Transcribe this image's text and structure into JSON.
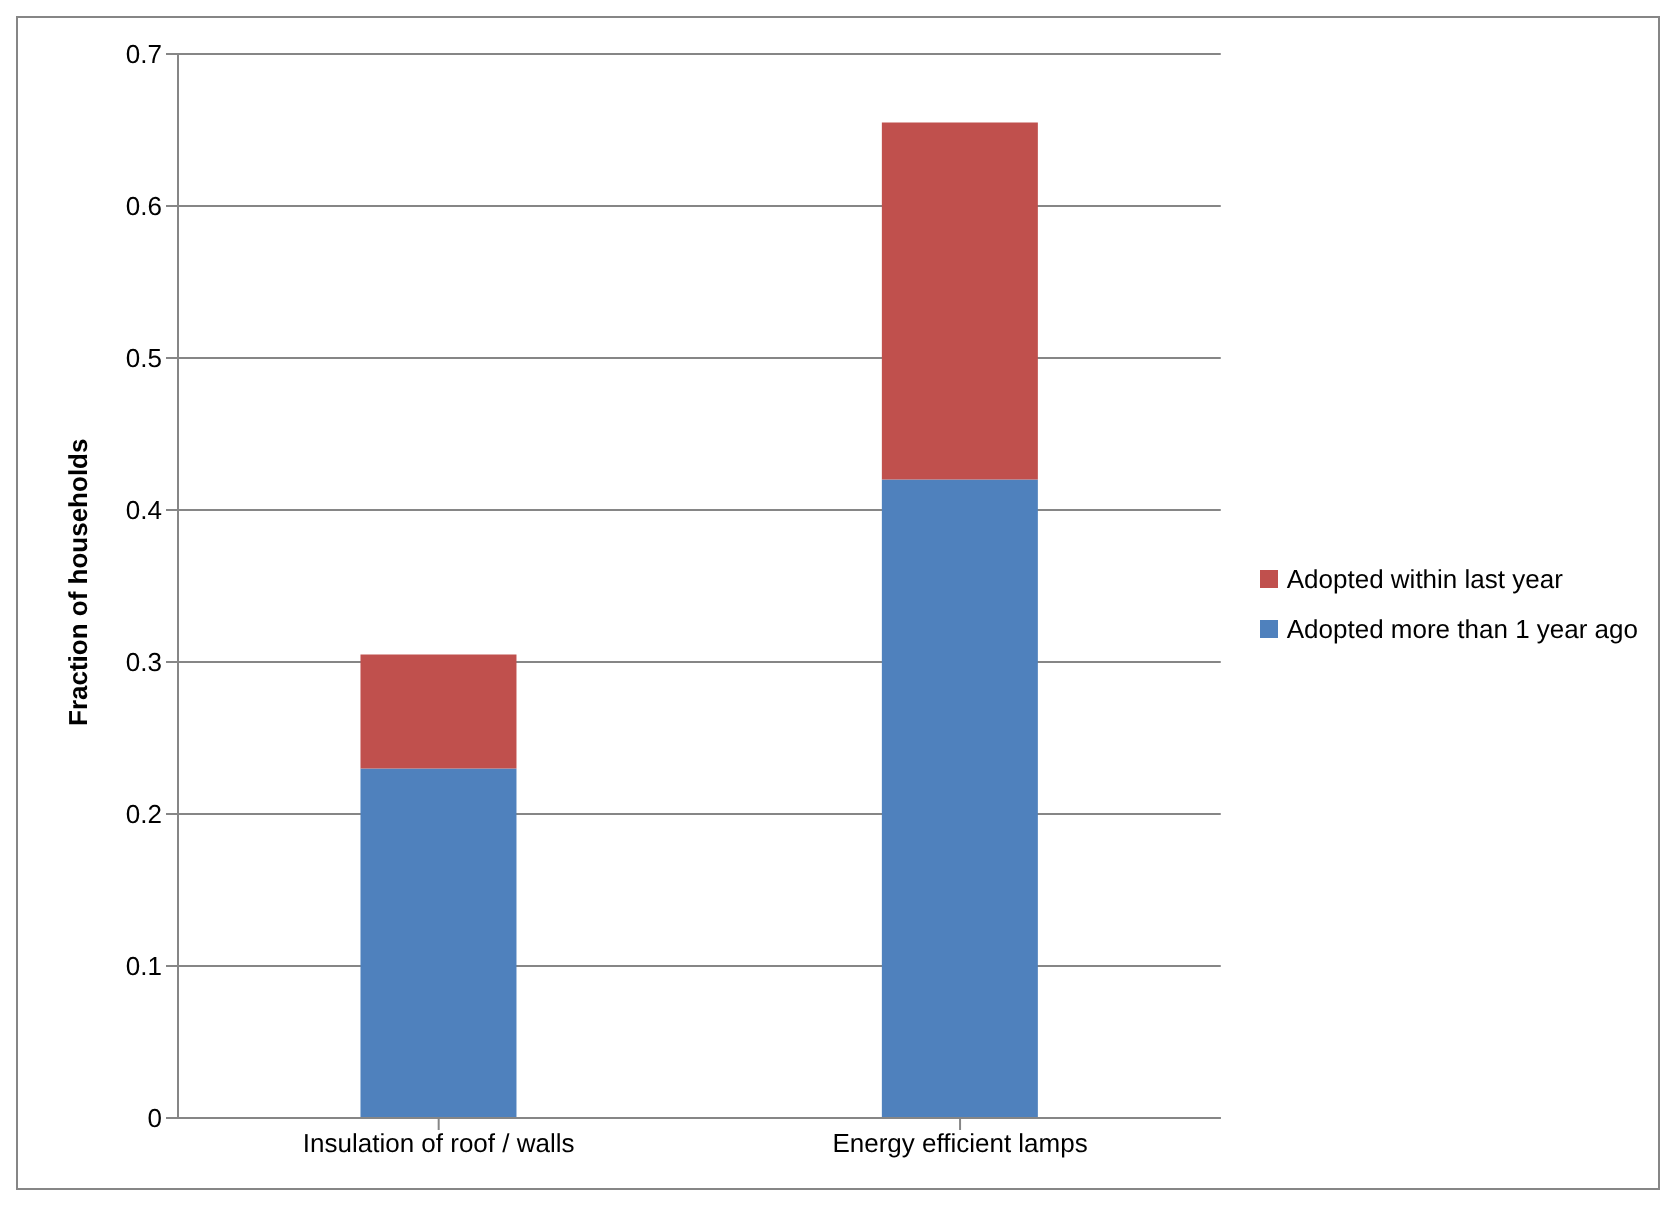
{
  "chart_data": {
    "type": "bar",
    "stacked": true,
    "ylabel": "Fraction of households",
    "categories": [
      "Insulation of roof / walls",
      "Energy efficient lamps"
    ],
    "series": [
      {
        "name": "Adopted more than 1 year ago",
        "color": "#4f81bd",
        "values": [
          0.23,
          0.42
        ]
      },
      {
        "name": "Adopted within last year",
        "color": "#c0504d",
        "values": [
          0.075,
          0.235
        ]
      }
    ],
    "ylim": [
      0,
      0.7
    ],
    "yticks": [
      0,
      0.1,
      0.2,
      0.3,
      0.4,
      0.5,
      0.6,
      0.7
    ],
    "grid": "y",
    "legend": "right"
  }
}
